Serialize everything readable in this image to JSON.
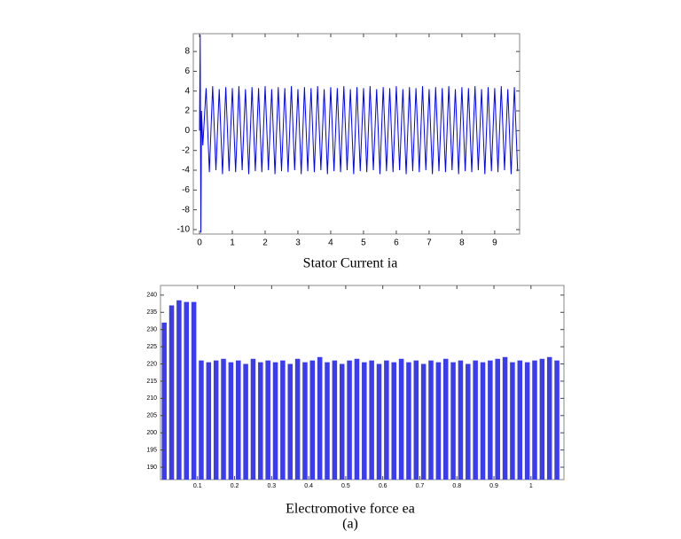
{
  "chart_data": [
    {
      "type": "line",
      "x_label": "Stator Current ia",
      "color": "#0000ff",
      "grid": false,
      "xlim": [
        -0.19,
        9.76
      ],
      "ylim": [
        -10.45,
        9.8
      ],
      "xticks": [
        0,
        1,
        2,
        3,
        4,
        5,
        6,
        7,
        8,
        9
      ],
      "yticks": [
        -10,
        -8,
        -6,
        -4,
        -2,
        0,
        2,
        4,
        6,
        8
      ],
      "x": [
        0,
        0.02,
        0.04,
        0.06,
        0.1,
        0.2,
        0.3,
        0.4,
        0.5,
        0.6,
        0.7,
        0.8,
        0.9,
        1.0,
        1.1,
        1.2,
        1.3,
        1.4,
        1.5,
        1.6,
        1.7,
        1.8,
        1.9,
        2.0,
        2.1,
        2.2,
        2.3,
        2.4,
        2.5,
        2.6,
        2.7,
        2.8,
        2.9,
        3.0,
        3.1,
        3.2,
        3.3,
        3.4,
        3.5,
        3.6,
        3.7,
        3.8,
        3.9,
        4.0,
        4.1,
        4.2,
        4.3,
        4.4,
        4.5,
        4.6,
        4.7,
        4.8,
        4.9,
        5.0,
        5.1,
        5.2,
        5.3,
        5.4,
        5.5,
        5.6,
        5.7,
        5.8,
        5.9,
        6.0,
        6.1,
        6.2,
        6.3,
        6.4,
        6.5,
        6.6,
        6.7,
        6.8,
        6.9,
        7.0,
        7.1,
        7.2,
        7.3,
        7.4,
        7.5,
        7.6,
        7.7,
        7.8,
        7.9,
        8.0,
        8.1,
        8.2,
        8.3,
        8.4,
        8.5,
        8.6,
        8.7,
        8.8,
        8.9,
        9.0,
        9.1,
        9.2,
        9.3,
        9.4,
        9.5,
        9.6,
        9.7
      ],
      "values": [
        0,
        9.7,
        -10.3,
        2,
        -1.5,
        4.3,
        -4.2,
        4.5,
        -4.0,
        4.2,
        -4.4,
        4.4,
        -4.1,
        4.3,
        -4.2,
        4.5,
        -4.0,
        4.2,
        -4.4,
        4.4,
        -4.1,
        4.3,
        -4.2,
        4.5,
        -4.0,
        4.2,
        -4.4,
        4.4,
        -4.1,
        4.3,
        -4.2,
        4.5,
        -4.0,
        4.2,
        -4.4,
        4.4,
        -4.1,
        4.3,
        -4.2,
        4.5,
        -4.0,
        4.2,
        -4.4,
        4.4,
        -4.1,
        4.3,
        -4.2,
        4.5,
        -4.0,
        4.2,
        -4.4,
        4.4,
        -4.1,
        4.3,
        -4.2,
        4.5,
        -4.0,
        4.2,
        -4.4,
        4.4,
        -4.1,
        4.3,
        -4.2,
        4.5,
        -4.0,
        4.2,
        -4.4,
        4.4,
        -4.1,
        4.3,
        -4.2,
        4.5,
        -4.0,
        4.2,
        -4.4,
        4.4,
        -4.1,
        4.3,
        -4.2,
        4.5,
        -4.0,
        4.2,
        -4.4,
        4.4,
        -4.1,
        4.3,
        -4.2,
        4.5,
        -4.0,
        4.2,
        -4.4,
        4.4,
        -4.1,
        4.3,
        -4.2,
        4.5,
        -4.0,
        4.2,
        -4.4,
        4.4,
        -4.1
      ]
    },
    {
      "type": "stem",
      "x_label": "Electromotive force ea",
      "caption": "(a)",
      "color": "#3b3bf0",
      "grid": false,
      "xlim": [
        0,
        1.089
      ],
      "ylim": [
        186.4,
        242.8
      ],
      "xticks": [
        0.1,
        0.2,
        0.3,
        0.4,
        0.5,
        0.6,
        0.7,
        0.8,
        0.9,
        1
      ],
      "yticks": [
        190,
        195,
        200,
        205,
        210,
        215,
        220,
        225,
        230,
        235,
        240
      ],
      "x": [
        0.01,
        0.03,
        0.05,
        0.07,
        0.09,
        0.11,
        0.13,
        0.15,
        0.17,
        0.19,
        0.21,
        0.23,
        0.25,
        0.27,
        0.29,
        0.31,
        0.33,
        0.35,
        0.37,
        0.39,
        0.41,
        0.43,
        0.45,
        0.47,
        0.49,
        0.51,
        0.53,
        0.55,
        0.57,
        0.59,
        0.61,
        0.63,
        0.65,
        0.67,
        0.69,
        0.71,
        0.73,
        0.75,
        0.77,
        0.79,
        0.81,
        0.83,
        0.85,
        0.87,
        0.89,
        0.91,
        0.93,
        0.95,
        0.97,
        0.99,
        1.01,
        1.03,
        1.05,
        1.07
      ],
      "values": [
        232,
        237,
        238.5,
        238,
        238,
        221,
        220.5,
        221,
        221.5,
        220.5,
        221,
        220,
        221.5,
        220.5,
        221,
        220.5,
        221,
        220,
        221.5,
        220.5,
        221,
        222,
        220.5,
        221,
        220,
        221,
        221.5,
        220.5,
        221,
        220,
        221,
        220.5,
        221.5,
        220.5,
        221,
        220,
        221,
        220.5,
        221.5,
        220.5,
        221,
        220,
        221,
        220.5,
        221,
        221.5,
        222,
        220.5,
        221,
        220.5,
        221,
        221.5,
        222,
        221
      ]
    }
  ]
}
